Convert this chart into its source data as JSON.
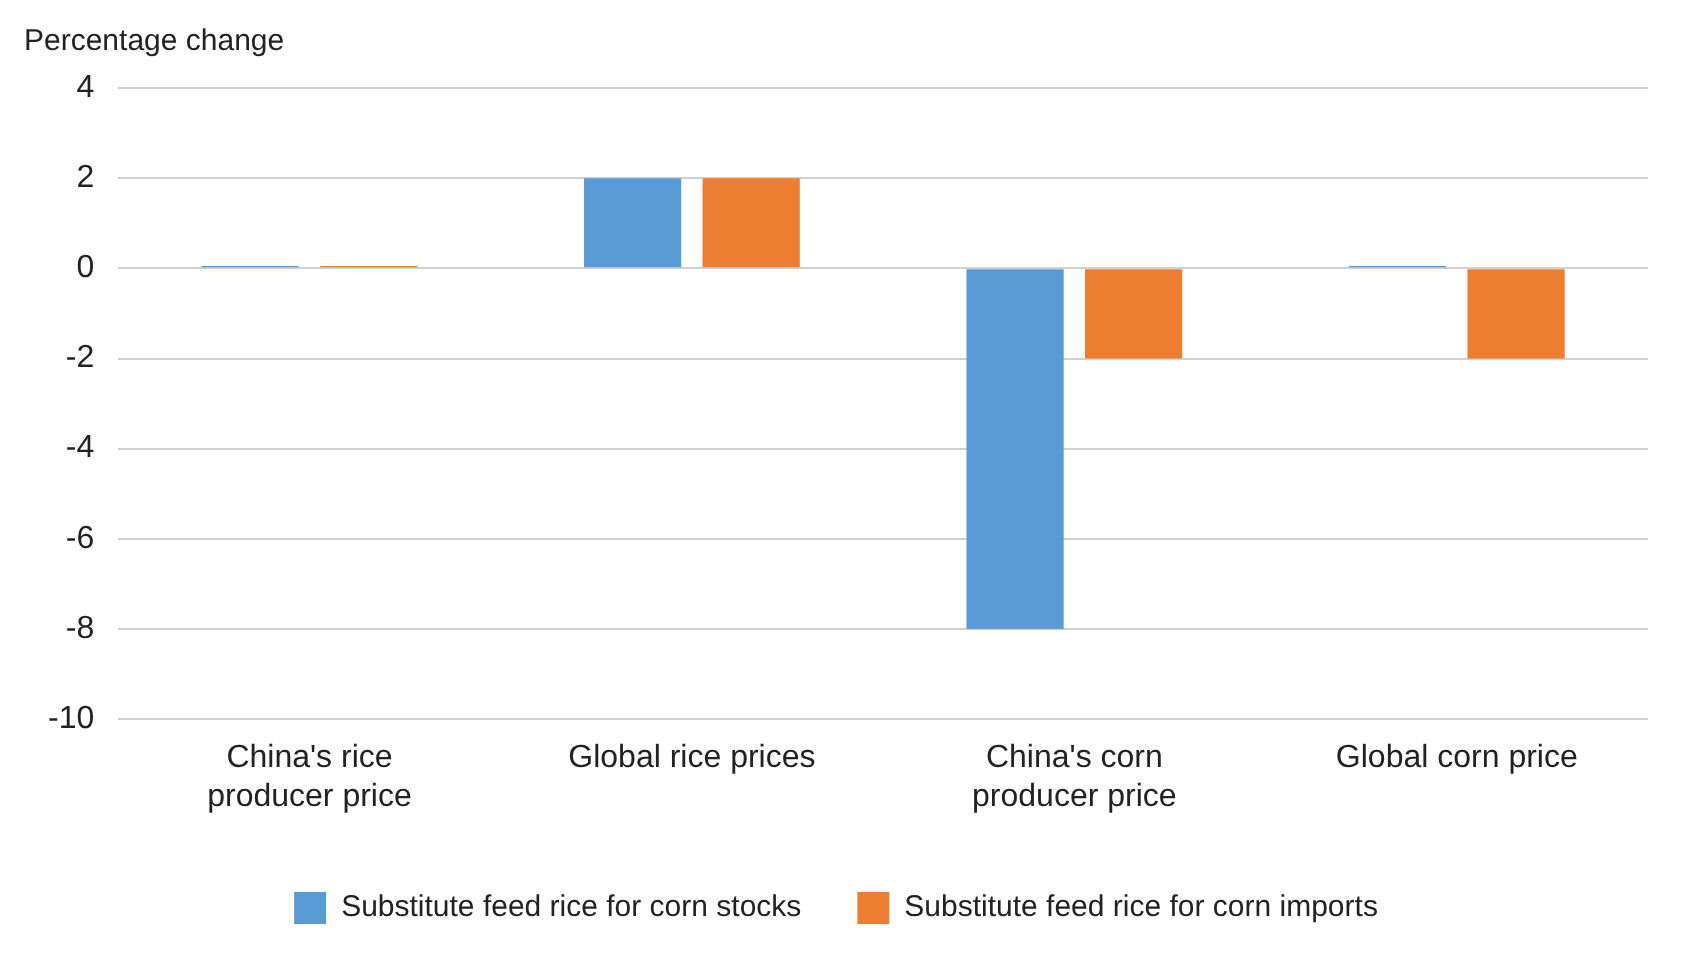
{
  "chart_data": {
    "type": "bar",
    "ylabel": "Percentage change",
    "categories": [
      "China's rice producer price",
      "Global rice prices",
      "China's corn producer price",
      "Global corn price"
    ],
    "series": [
      {
        "name": "Substitute feed rice for corn stocks",
        "color": "#5b9bd5",
        "values": [
          0.05,
          2,
          -8,
          0.05
        ]
      },
      {
        "name": "Substitute feed rice for corn imports",
        "color": "#ed7d31",
        "values": [
          0.05,
          2,
          -2,
          -2
        ]
      }
    ],
    "ylim": [
      -10,
      4
    ],
    "yticks": [
      -10,
      -8,
      -6,
      -4,
      -2,
      0,
      2,
      4
    ],
    "grid": "y",
    "legend": "bottom"
  }
}
